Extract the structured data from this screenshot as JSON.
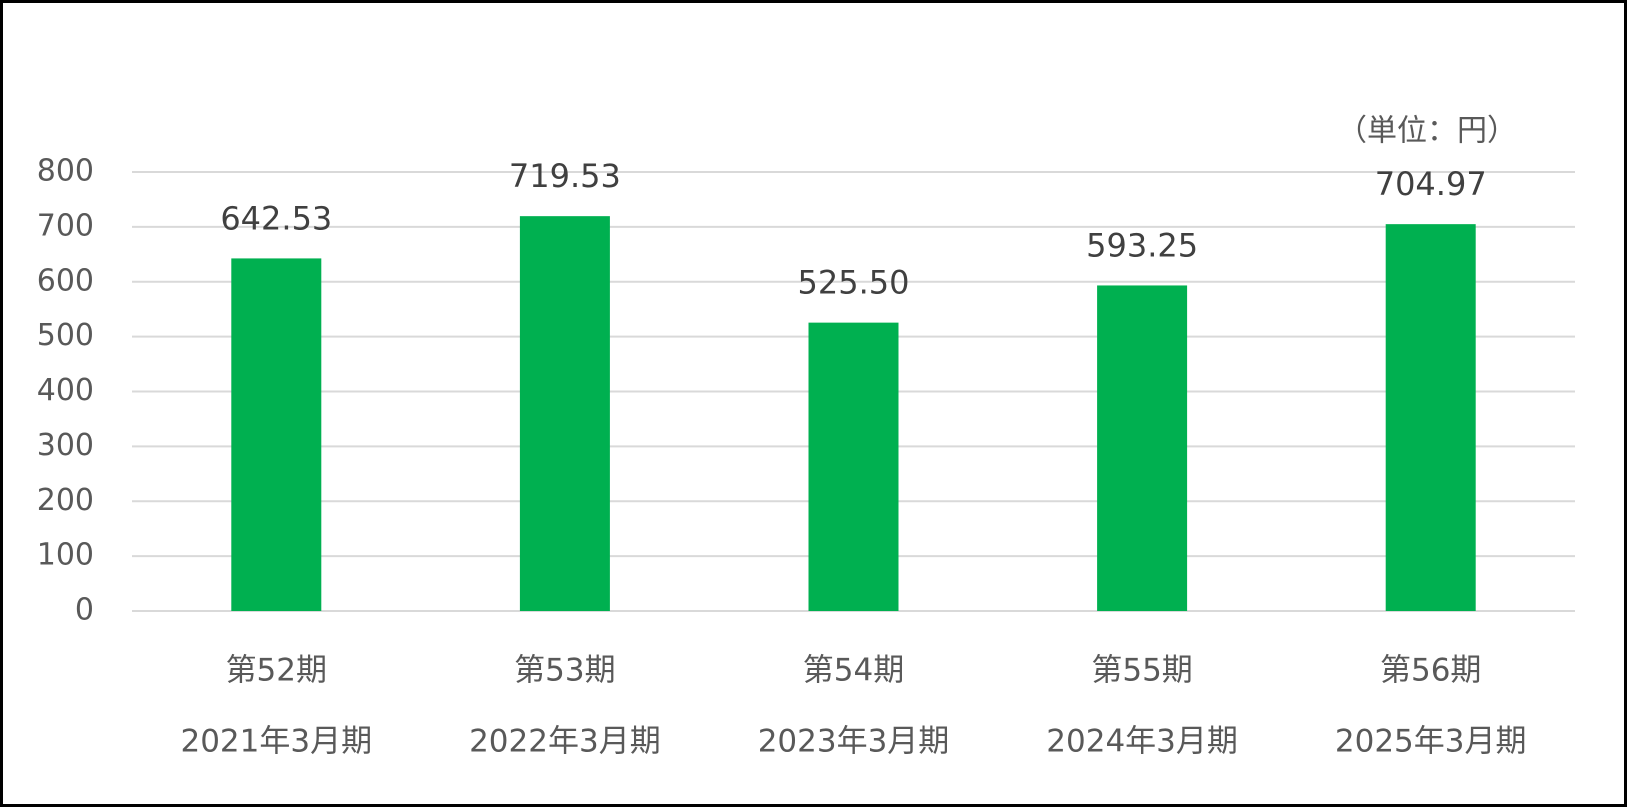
{
  "chart_data": {
    "type": "bar",
    "unit_note": "（単位：円）",
    "categories": [
      [
        "第52期",
        "2021年3月期"
      ],
      [
        "第53期",
        "2022年3月期"
      ],
      [
        "第54期",
        "2023年3月期"
      ],
      [
        "第55期",
        "2024年3月期"
      ],
      [
        "第56期",
        "2025年3月期"
      ]
    ],
    "values": [
      642.53,
      719.53,
      525.5,
      593.25,
      704.97
    ],
    "value_labels": [
      "642.53",
      "719.53",
      "525.50",
      "593.25",
      "704.97"
    ],
    "color": "#00b050",
    "ylim": [
      0,
      800
    ],
    "yticks": [
      0,
      100,
      200,
      300,
      400,
      500,
      600,
      700,
      800
    ],
    "grid": true
  }
}
